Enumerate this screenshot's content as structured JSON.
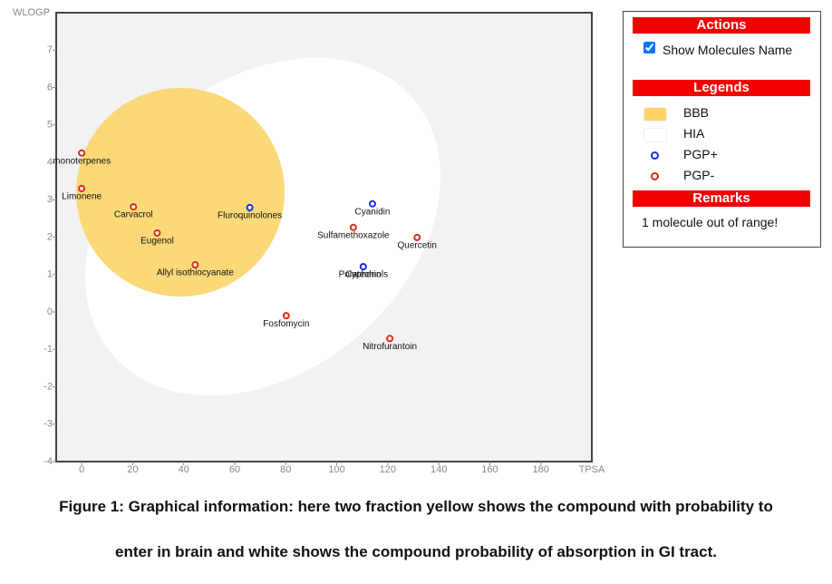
{
  "chart_data": {
    "type": "scatter",
    "xlabel": "TPSA",
    "ylabel": "WLOGP",
    "xlim": [
      -10,
      200
    ],
    "ylim": [
      -4,
      8
    ],
    "xticks": [
      0,
      20,
      40,
      60,
      80,
      100,
      120,
      140,
      160,
      180
    ],
    "yticks": [
      -4,
      -3,
      -2,
      -1,
      0,
      1,
      2,
      3,
      4,
      5,
      6,
      7
    ],
    "series": [
      {
        "name": "PGP+",
        "color": "#1a2ee0",
        "x": [
          65.9,
          114.0,
          110.4,
          110.4
        ],
        "values": [
          2.79,
          2.89,
          1.21,
          1.21
        ],
        "labels": [
          "Fluroquinolones",
          "Cyanidin",
          "Polyphenols",
          "Catechin"
        ]
      },
      {
        "name": "PGP-",
        "color": "#e02a1a",
        "x": [
          0,
          0,
          20.3,
          29.6,
          44.5,
          80.2,
          120.8,
          106.5,
          131.5
        ],
        "values": [
          4.25,
          3.3,
          2.81,
          2.11,
          1.26,
          -0.1,
          -0.71,
          2.26,
          1.99
        ],
        "labels": [
          "monoterpenes",
          "Limonene",
          "Carvacrol",
          "Eugenol",
          "Allyl isothiocyanate",
          "Fosfomycin",
          "Nitrofurantoin",
          "Sulfamethoxazole",
          "Quercetin"
        ]
      }
    ],
    "regions": [
      {
        "name": "BBB",
        "color": "#fcd569"
      },
      {
        "name": "HIA",
        "color": "#ffffff"
      }
    ]
  },
  "panel": {
    "actions_title": "Actions",
    "show_names": "Show Molecules Name",
    "legends_title": "Legends",
    "remarks_title": "Remarks",
    "remarks": "1 molecule out of range!"
  },
  "caption": [
    "Figure 1: Graphical information: here two fraction yellow shows the compound with probability to",
    "enter in brain and white shows the compound probability of absorption in GI tract."
  ]
}
